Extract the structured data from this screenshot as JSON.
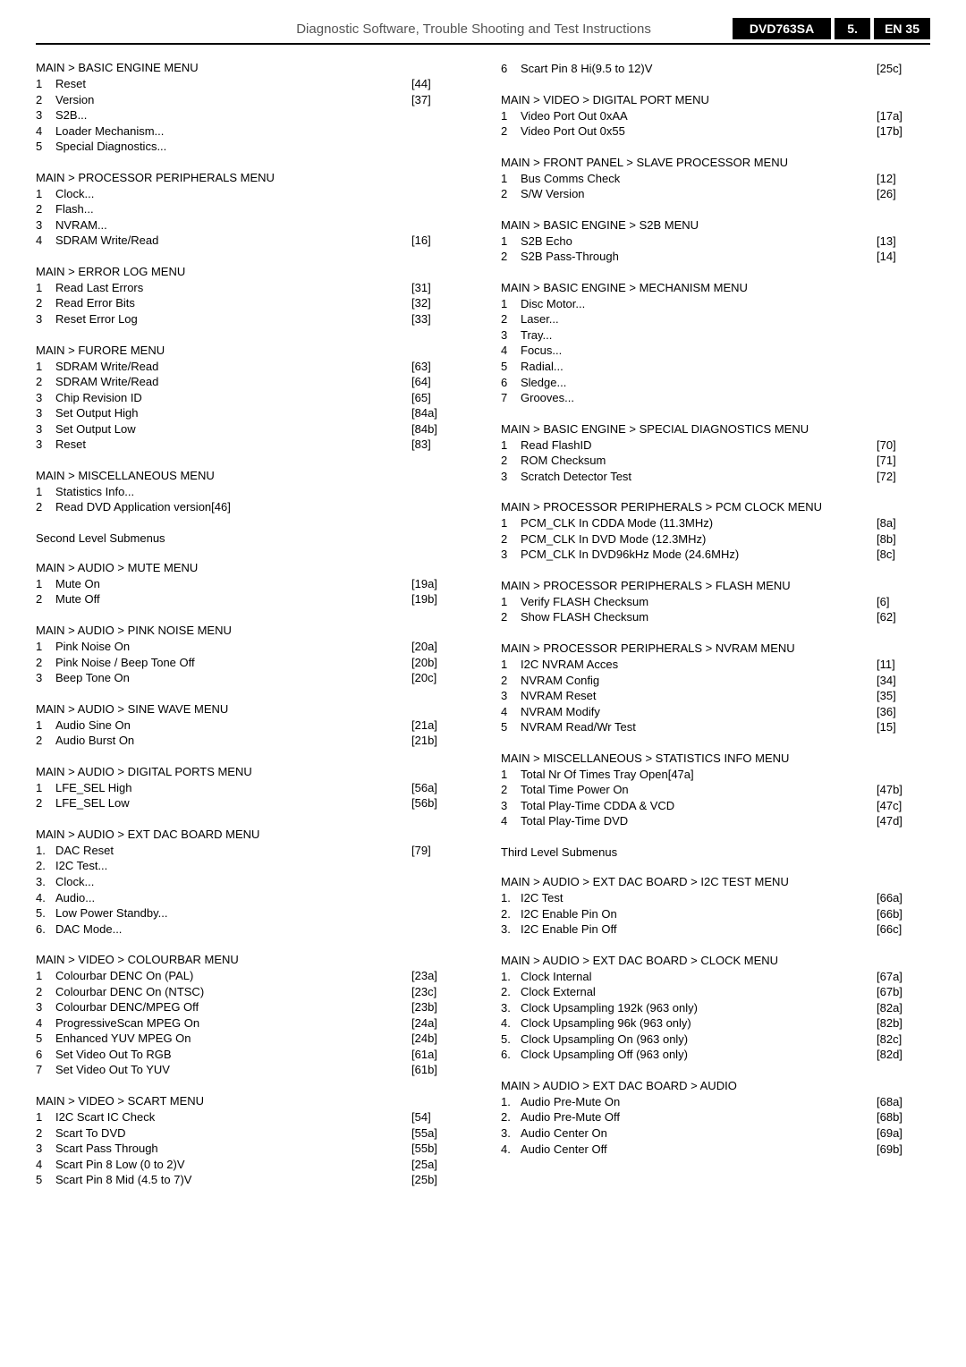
{
  "header": {
    "title": "Diagnostic Software, Trouble Shooting and Test Instructions",
    "badge1": "DVD763SA",
    "badge2": "5.",
    "badge3": "EN 35"
  },
  "left": [
    {
      "title": "MAIN > BASIC ENGINE MENU",
      "items": [
        {
          "i": "1",
          "l": "Reset",
          "r": "[44]"
        },
        {
          "i": "2",
          "l": "Version",
          "r": "[37]"
        },
        {
          "i": "3",
          "l": "S2B...",
          "r": ""
        },
        {
          "i": "4",
          "l": "Loader Mechanism...",
          "r": ""
        },
        {
          "i": "5",
          "l": "Special Diagnostics...",
          "r": ""
        }
      ]
    },
    {
      "title": "MAIN > PROCESSOR PERIPHERALS MENU",
      "items": [
        {
          "i": "1",
          "l": "Clock...",
          "r": ""
        },
        {
          "i": "2",
          "l": "Flash...",
          "r": ""
        },
        {
          "i": "3",
          "l": "NVRAM...",
          "r": ""
        },
        {
          "i": "4",
          "l": "SDRAM Write/Read",
          "r": "[16]"
        }
      ]
    },
    {
      "title": "MAIN > ERROR LOG MENU",
      "items": [
        {
          "i": "1",
          "l": "Read Last Errors",
          "r": "[31]"
        },
        {
          "i": "2",
          "l": "Read Error Bits",
          "r": "[32]"
        },
        {
          "i": "3",
          "l": "Reset Error Log",
          "r": "[33]"
        }
      ]
    },
    {
      "title": "MAIN > FURORE MENU",
      "items": [
        {
          "i": "1",
          "l": "SDRAM Write/Read",
          "r": "[63]"
        },
        {
          "i": "2",
          "l": "SDRAM Write/Read",
          "r": "[64]"
        },
        {
          "i": "3",
          "l": "Chip Revision ID",
          "r": "[65]"
        },
        {
          "i": "3",
          "l": "Set Output High",
          "r": "[84a]"
        },
        {
          "i": "3",
          "l": "Set Output Low",
          "r": "[84b]"
        },
        {
          "i": "3",
          "l": "Reset",
          "r": "[83]"
        }
      ]
    },
    {
      "title": "MAIN > MISCELLANEOUS MENU",
      "items": [
        {
          "i": "1",
          "l": "Statistics Info...",
          "r": ""
        },
        {
          "i": "2",
          "l": "Read DVD Application version[46]",
          "r": ""
        }
      ]
    },
    {
      "title": "Second Level Submenus",
      "items": []
    },
    {
      "title": "MAIN > AUDIO > MUTE MENU",
      "items": [
        {
          "i": "1",
          "l": "Mute On",
          "r": "[19a]"
        },
        {
          "i": "2",
          "l": "Mute Off",
          "r": "[19b]"
        }
      ]
    },
    {
      "title": "MAIN > AUDIO > PINK NOISE MENU",
      "items": [
        {
          "i": "1",
          "l": "Pink Noise On",
          "r": "[20a]"
        },
        {
          "i": "2",
          "l": "Pink Noise / Beep Tone Off",
          "r": "[20b]"
        },
        {
          "i": "3",
          "l": "Beep Tone On",
          "r": "[20c]"
        }
      ]
    },
    {
      "title": "MAIN > AUDIO > SINE WAVE MENU",
      "items": [
        {
          "i": "1",
          "l": "Audio Sine On",
          "r": "[21a]"
        },
        {
          "i": "2",
          "l": "Audio Burst On",
          "r": "[21b]"
        }
      ]
    },
    {
      "title": "MAIN > AUDIO > DIGITAL PORTS MENU",
      "items": [
        {
          "i": "1",
          "l": "LFE_SEL High",
          "r": "[56a]"
        },
        {
          "i": "2",
          "l": "LFE_SEL Low",
          "r": "[56b]"
        }
      ]
    },
    {
      "title": "MAIN > AUDIO > EXT DAC BOARD MENU",
      "items": [
        {
          "i": "1.",
          "l": "DAC Reset",
          "r": "[79]"
        },
        {
          "i": "2.",
          "l": "I2C Test...",
          "r": ""
        },
        {
          "i": "3.",
          "l": "Clock...",
          "r": ""
        },
        {
          "i": "4.",
          "l": "Audio...",
          "r": ""
        },
        {
          "i": "5.",
          "l": "Low Power Standby...",
          "r": ""
        },
        {
          "i": "6.",
          "l": "DAC Mode...",
          "r": ""
        }
      ]
    },
    {
      "title": "MAIN > VIDEO > COLOURBAR MENU",
      "items": [
        {
          "i": "1",
          "l": "Colourbar DENC On (PAL)",
          "r": "[23a]"
        },
        {
          "i": "2",
          "l": "Colourbar DENC On (NTSC)",
          "r": "[23c]"
        },
        {
          "i": "3",
          "l": "Colourbar DENC/MPEG Off",
          "r": "[23b]"
        },
        {
          "i": "4",
          "l": "ProgressiveScan MPEG On",
          "r": "[24a]"
        },
        {
          "i": "5",
          "l": "Enhanced YUV MPEG On",
          "r": "[24b]"
        },
        {
          "i": "6",
          "l": "Set Video Out To RGB",
          "r": "[61a]"
        },
        {
          "i": "7",
          "l": "Set Video Out To YUV",
          "r": "[61b]"
        }
      ]
    },
    {
      "title": "MAIN > VIDEO > SCART MENU",
      "items": [
        {
          "i": "1",
          "l": "I2C Scart IC Check",
          "r": "[54]"
        },
        {
          "i": "2",
          "l": "Scart To DVD",
          "r": "[55a]"
        },
        {
          "i": "3",
          "l": "Scart Pass Through",
          "r": "[55b]"
        },
        {
          "i": "4",
          "l": "Scart Pin 8 Low (0 to 2)V",
          "r": "[25a]"
        },
        {
          "i": "5",
          "l": "Scart Pin 8 Mid (4.5 to 7)V",
          "r": "[25b]"
        }
      ]
    }
  ],
  "right": [
    {
      "title": "",
      "items": [
        {
          "i": "6",
          "l": "Scart Pin 8 Hi(9.5 to 12)V",
          "r": "[25c]"
        }
      ]
    },
    {
      "title": "MAIN > VIDEO > DIGITAL PORT MENU",
      "items": [
        {
          "i": "1",
          "l": "Video Port Out 0xAA",
          "r": "[17a]"
        },
        {
          "i": "2",
          "l": "Video Port Out 0x55",
          "r": "[17b]"
        }
      ]
    },
    {
      "title": "MAIN > FRONT PANEL > SLAVE PROCESSOR MENU",
      "items": [
        {
          "i": "1",
          "l": "Bus Comms Check",
          "r": "[12]"
        },
        {
          "i": "2",
          "l": "S/W Version",
          "r": "[26]"
        }
      ]
    },
    {
      "title": "MAIN > BASIC ENGINE > S2B MENU",
      "items": [
        {
          "i": "1",
          "l": "S2B Echo",
          "r": "[13]"
        },
        {
          "i": "2",
          "l": "S2B Pass-Through",
          "r": "[14]"
        }
      ]
    },
    {
      "title": "MAIN > BASIC ENGINE > MECHANISM MENU",
      "items": [
        {
          "i": "1",
          "l": "Disc Motor...",
          "r": ""
        },
        {
          "i": "2",
          "l": "Laser...",
          "r": ""
        },
        {
          "i": "3",
          "l": "Tray...",
          "r": ""
        },
        {
          "i": "4",
          "l": "Focus...",
          "r": ""
        },
        {
          "i": "5",
          "l": "Radial...",
          "r": ""
        },
        {
          "i": "6",
          "l": "Sledge...",
          "r": ""
        },
        {
          "i": "7",
          "l": "Grooves...",
          "r": ""
        }
      ]
    },
    {
      "title": "MAIN > BASIC ENGINE > SPECIAL DIAGNOSTICS MENU",
      "items": [
        {
          "i": "1",
          "l": "Read FlashID",
          "r": "[70]"
        },
        {
          "i": "2",
          "l": "ROM Checksum",
          "r": "[71]"
        },
        {
          "i": "3",
          "l": "Scratch Detector Test",
          "r": "[72]"
        }
      ]
    },
    {
      "title": "MAIN > PROCESSOR PERIPHERALS > PCM CLOCK MENU",
      "items": [
        {
          "i": "1",
          "l": "PCM_CLK In CDDA Mode (11.3MHz)",
          "r": "[8a]"
        },
        {
          "i": "2",
          "l": "PCM_CLK In DVD Mode (12.3MHz)",
          "r": "[8b]"
        },
        {
          "i": "3",
          "l": "PCM_CLK In DVD96kHz Mode (24.6MHz)",
          "r": "[8c]"
        }
      ]
    },
    {
      "title": "MAIN > PROCESSOR PERIPHERALS > FLASH MENU",
      "items": [
        {
          "i": "1",
          "l": "Verify FLASH Checksum",
          "r": "[6]"
        },
        {
          "i": "2",
          "l": "Show FLASH Checksum",
          "r": "[62]"
        }
      ]
    },
    {
      "title": "MAIN > PROCESSOR PERIPHERALS > NVRAM MENU",
      "items": [
        {
          "i": "1",
          "l": "I2C NVRAM Acces",
          "r": "[11]"
        },
        {
          "i": "2",
          "l": "NVRAM Config",
          "r": "[34]"
        },
        {
          "i": "3",
          "l": "NVRAM Reset",
          "r": "[35]"
        },
        {
          "i": "4",
          "l": "NVRAM Modify",
          "r": "[36]"
        },
        {
          "i": "5",
          "l": "NVRAM Read/Wr Test",
          "r": "[15]"
        }
      ]
    },
    {
      "title": "MAIN > MISCELLANEOUS > STATISTICS INFO MENU",
      "items": [
        {
          "i": "1",
          "l": "Total Nr Of Times Tray Open[47a]",
          "r": ""
        },
        {
          "i": "2",
          "l": "Total Time Power On",
          "r": "[47b]"
        },
        {
          "i": "3",
          "l": "Total Play-Time CDDA & VCD",
          "r": "[47c]"
        },
        {
          "i": "4",
          "l": "Total Play-Time DVD",
          "r": "[47d]"
        }
      ]
    },
    {
      "title": "Third Level Submenus",
      "items": []
    },
    {
      "title": "MAIN > AUDIO > EXT DAC BOARD > I2C TEST MENU",
      "items": [
        {
          "i": "1.",
          "l": "I2C Test",
          "r": "[66a]"
        },
        {
          "i": "2.",
          "l": "I2C Enable Pin On",
          "r": "[66b]"
        },
        {
          "i": "3.",
          "l": "I2C Enable Pin Off",
          "r": "[66c]"
        }
      ]
    },
    {
      "title": "MAIN > AUDIO > EXT DAC BOARD > CLOCK MENU",
      "items": [
        {
          "i": "1.",
          "l": "Clock Internal",
          "r": "[67a]"
        },
        {
          "i": "2.",
          "l": "Clock External",
          "r": "[67b]"
        },
        {
          "i": "3.",
          "l": "Clock Upsampling 192k (963 only)",
          "r": "[82a]"
        },
        {
          "i": "4.",
          "l": "Clock Upsampling 96k  (963 only)",
          "r": "[82b]"
        },
        {
          "i": "5.",
          "l": "Clock Upsampling On  (963 only)",
          "r": "[82c]"
        },
        {
          "i": "6.",
          "l": "Clock Upsampling Off  (963 only)",
          "r": "[82d]"
        }
      ]
    },
    {
      "title": "MAIN > AUDIO > EXT DAC BOARD > AUDIO",
      "items": [
        {
          "i": "1.",
          "l": "Audio Pre-Mute On",
          "r": "[68a]"
        },
        {
          "i": "2.",
          "l": "Audio Pre-Mute Off",
          "r": "[68b]"
        },
        {
          "i": "3.",
          "l": "Audio Center On",
          "r": "[69a]"
        },
        {
          "i": "4.",
          "l": "Audio Center Off",
          "r": "[69b]"
        }
      ]
    }
  ]
}
